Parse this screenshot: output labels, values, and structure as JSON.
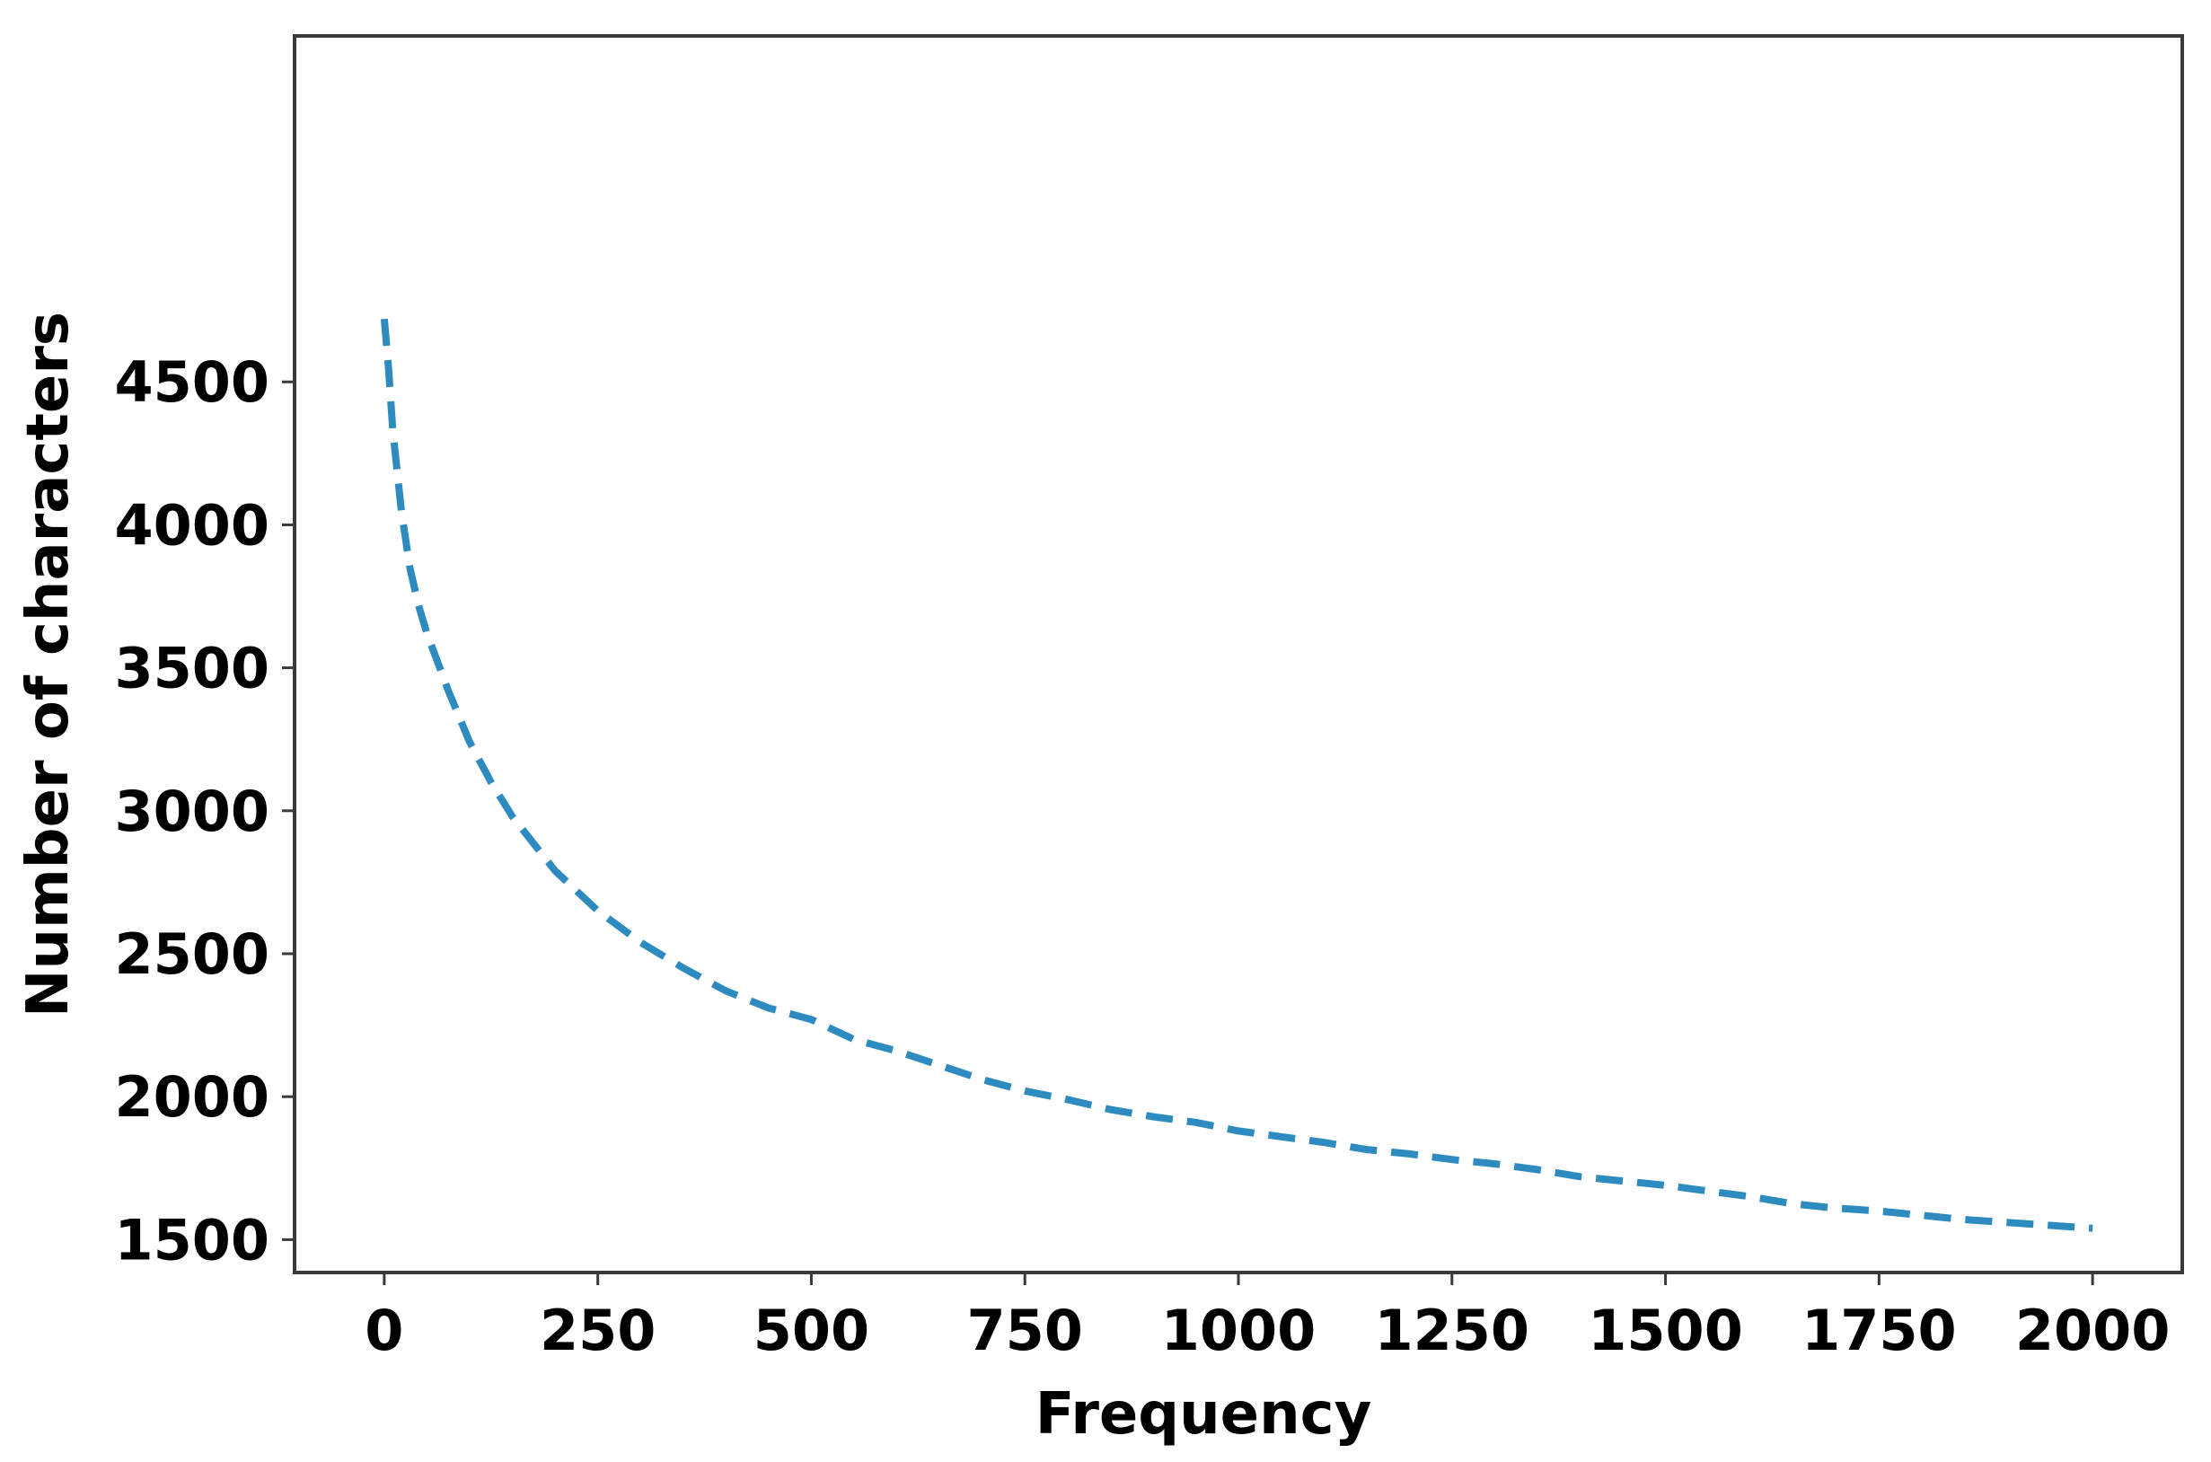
{
  "chart_data": {
    "type": "line",
    "title": "",
    "xlabel": "Frequency",
    "ylabel": "Number of characters",
    "xlim": [
      -105,
      2105
    ],
    "ylim": [
      1385,
      5710
    ],
    "x_ticks": [
      0,
      250,
      500,
      750,
      1000,
      1250,
      1500,
      1750,
      2000
    ],
    "y_ticks": [
      1500,
      2000,
      2500,
      3000,
      3500,
      4000,
      4500
    ],
    "grid": false,
    "legend": "none",
    "series": [
      {
        "line_style": "dashed",
        "color": "#2e8bc0",
        "x": [
          0,
          5,
          10,
          20,
          30,
          40,
          50,
          75,
          100,
          125,
          150,
          200,
          250,
          300,
          350,
          400,
          450,
          500,
          550,
          600,
          650,
          700,
          750,
          800,
          850,
          900,
          950,
          1000,
          1050,
          1100,
          1150,
          1200,
          1250,
          1300,
          1350,
          1400,
          1450,
          1500,
          1550,
          1600,
          1650,
          1700,
          1750,
          1800,
          1850,
          1900,
          1950,
          2000
        ],
        "y": [
          4720,
          4550,
          4330,
          4050,
          3850,
          3720,
          3620,
          3420,
          3240,
          3100,
          2980,
          2790,
          2650,
          2540,
          2450,
          2370,
          2310,
          2270,
          2200,
          2160,
          2110,
          2060,
          2020,
          1990,
          1955,
          1930,
          1910,
          1880,
          1860,
          1840,
          1815,
          1800,
          1780,
          1765,
          1745,
          1720,
          1705,
          1690,
          1670,
          1650,
          1625,
          1610,
          1600,
          1585,
          1570,
          1560,
          1550,
          1540
        ]
      }
    ]
  }
}
